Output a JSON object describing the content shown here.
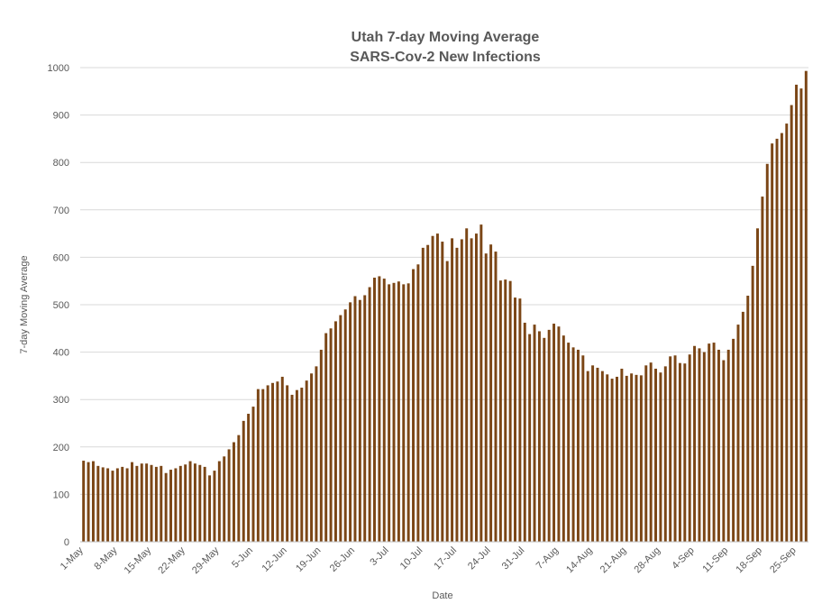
{
  "chart_data": {
    "type": "bar",
    "title": [
      "Utah 7-day Moving Average",
      "SARS-Cov-2 New Infections"
    ],
    "xlabel": "Date",
    "ylabel": "7-day Moving Average",
    "ylim": [
      0,
      1000
    ],
    "yticks": [
      0,
      100,
      200,
      300,
      400,
      500,
      600,
      700,
      800,
      900,
      1000
    ],
    "grid": true,
    "legend": "none",
    "bar_color": "#7b4616",
    "start_date": "1-May",
    "x_tick_labels": [
      {
        "index": 0,
        "label": "1-May"
      },
      {
        "index": 7,
        "label": "8-May"
      },
      {
        "index": 14,
        "label": "15-May"
      },
      {
        "index": 21,
        "label": "22-May"
      },
      {
        "index": 28,
        "label": "29-May"
      },
      {
        "index": 35,
        "label": "5-Jun"
      },
      {
        "index": 42,
        "label": "12-Jun"
      },
      {
        "index": 49,
        "label": "19-Jun"
      },
      {
        "index": 56,
        "label": "26-Jun"
      },
      {
        "index": 63,
        "label": "3-Jul"
      },
      {
        "index": 70,
        "label": "10-Jul"
      },
      {
        "index": 77,
        "label": "17-Jul"
      },
      {
        "index": 84,
        "label": "24-Jul"
      },
      {
        "index": 91,
        "label": "31-Jul"
      },
      {
        "index": 98,
        "label": "7-Aug"
      },
      {
        "index": 105,
        "label": "14-Aug"
      },
      {
        "index": 112,
        "label": "21-Aug"
      },
      {
        "index": 119,
        "label": "28-Aug"
      },
      {
        "index": 126,
        "label": "4-Sep"
      },
      {
        "index": 133,
        "label": "11-Sep"
      },
      {
        "index": 140,
        "label": "18-Sep"
      },
      {
        "index": 147,
        "label": "25-Sep"
      }
    ],
    "values": [
      171,
      168,
      170,
      160,
      157,
      155,
      150,
      155,
      158,
      155,
      168,
      160,
      165,
      165,
      162,
      158,
      160,
      145,
      152,
      155,
      160,
      163,
      170,
      165,
      162,
      158,
      140,
      150,
      170,
      180,
      195,
      210,
      225,
      255,
      270,
      285,
      322,
      322,
      330,
      335,
      338,
      348,
      330,
      310,
      320,
      325,
      340,
      355,
      370,
      405,
      440,
      450,
      465,
      478,
      490,
      505,
      518,
      510,
      520,
      537,
      557,
      560,
      555,
      543,
      546,
      549,
      543,
      545,
      575,
      585,
      620,
      626,
      645,
      650,
      633,
      592,
      640,
      620,
      638,
      661,
      640,
      650,
      669,
      608,
      627,
      612,
      551,
      553,
      550,
      515,
      513,
      462,
      438,
      458,
      444,
      430,
      447,
      460,
      454,
      435,
      420,
      410,
      405,
      393,
      360,
      372,
      367,
      360,
      353,
      344,
      348,
      365,
      350,
      355,
      352,
      351,
      372,
      378,
      365,
      357,
      370,
      391,
      393,
      377,
      376,
      395,
      413,
      408,
      400,
      418,
      420,
      405,
      383,
      405,
      428,
      458,
      485,
      519,
      582,
      661,
      728,
      797,
      840,
      850,
      862,
      882,
      921,
      964,
      956,
      993
    ]
  }
}
